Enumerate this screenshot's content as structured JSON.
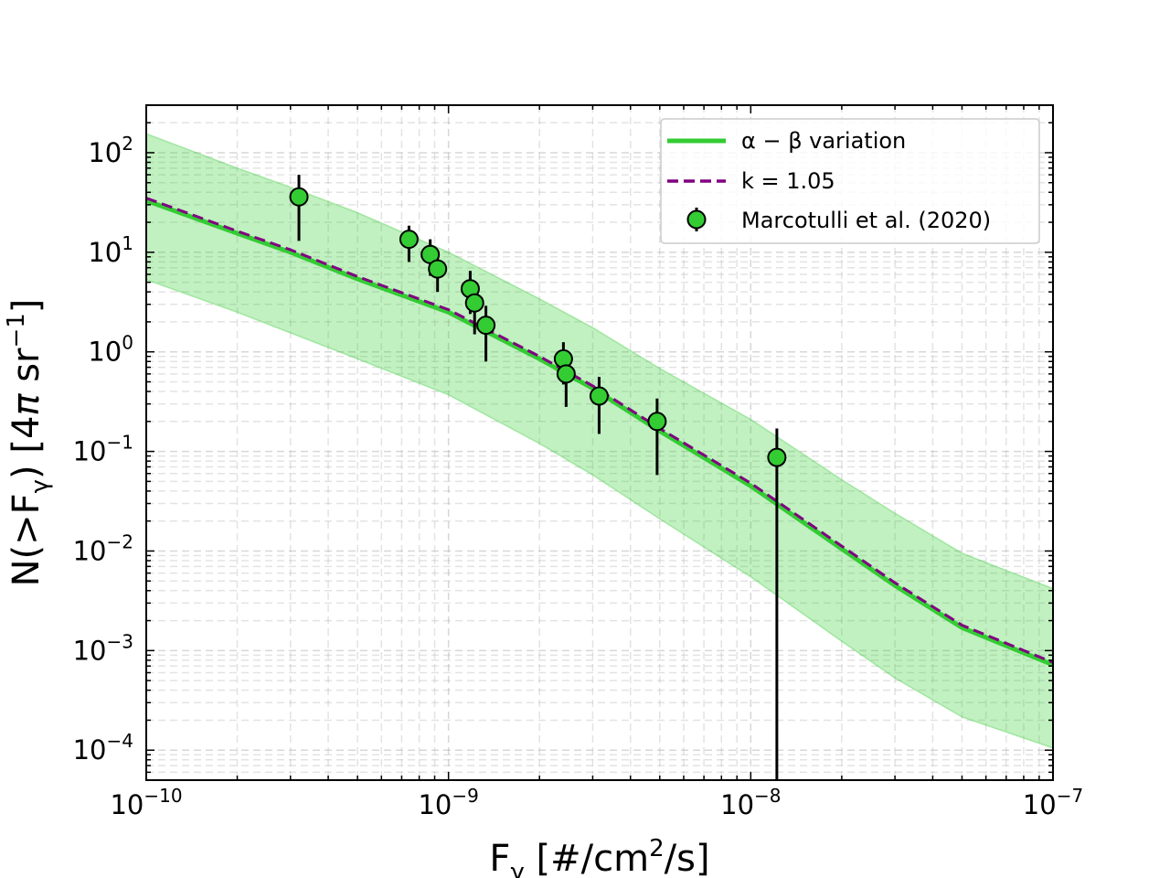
{
  "chart_data": {
    "type": "line",
    "title": "",
    "xlabel": {
      "base": "F",
      "sub": "γ",
      "units_pre": " [#/cm",
      "units_sup": "2",
      "units_post": "/s]"
    },
    "ylabel": {
      "pre": "N(>F",
      "sub": "γ",
      "mid": ") [4",
      "pi": "π",
      "sr": " sr",
      "sup": "−1",
      "post": "]"
    },
    "x_scale": "log",
    "y_scale": "log",
    "xlim": [
      1e-10,
      1e-07
    ],
    "ylim": [
      5e-05,
      300
    ],
    "x_ticks": [
      {
        "value": 1e-10,
        "base": "10",
        "exp": "−10"
      },
      {
        "value": 1e-09,
        "base": "10",
        "exp": "−9"
      },
      {
        "value": 1e-08,
        "base": "10",
        "exp": "−8"
      },
      {
        "value": 1e-07,
        "base": "10",
        "exp": "−7"
      }
    ],
    "y_ticks": [
      {
        "value": 100,
        "base": "10",
        "exp": "2"
      },
      {
        "value": 10,
        "base": "10",
        "exp": "1"
      },
      {
        "value": 1,
        "base": "10",
        "exp": "0"
      },
      {
        "value": 0.1,
        "base": "10",
        "exp": "−1"
      },
      {
        "value": 0.01,
        "base": "10",
        "exp": "−2"
      },
      {
        "value": 0.001,
        "base": "10",
        "exp": "−3"
      },
      {
        "value": 0.0001,
        "base": "10",
        "exp": "−4"
      }
    ],
    "grid": true,
    "legend_position": "top-right",
    "series": [
      {
        "name": "α − β variation",
        "kind": "line",
        "color": "#33cc33",
        "x": [
          1e-10,
          2e-10,
          3e-10,
          5e-10,
          1e-09,
          2e-09,
          3e-09,
          5e-09,
          1e-08,
          2e-08,
          3e-08,
          5e-08,
          1e-07
        ],
        "y": [
          33,
          15.5,
          10,
          5.4,
          2.5,
          0.85,
          0.43,
          0.16,
          0.045,
          0.0105,
          0.0045,
          0.0017,
          0.00072
        ]
      },
      {
        "name": "k = 1.05",
        "kind": "dashed-line",
        "color": "#800080",
        "x": [
          1e-10,
          2e-10,
          3e-10,
          5e-10,
          1e-09,
          2e-09,
          3e-09,
          5e-09,
          1e-08,
          2e-08,
          3e-08,
          5e-08,
          1e-07
        ],
        "y": [
          35,
          16.3,
          10.6,
          5.7,
          2.65,
          0.9,
          0.455,
          0.17,
          0.048,
          0.0112,
          0.0048,
          0.0018,
          0.00076
        ]
      },
      {
        "name": "Marcotulli et al. (2020)",
        "kind": "errorbar-scatter",
        "color": "#33cc33",
        "x": [
          3.2e-10,
          7.4e-10,
          8.7e-10,
          9.2e-10,
          1.18e-09,
          1.22e-09,
          1.33e-09,
          2.4e-09,
          2.45e-09,
          3.15e-09,
          4.9e-09,
          1.22e-08
        ],
        "y": [
          36,
          13.5,
          9.5,
          6.8,
          4.3,
          3.1,
          1.85,
          0.85,
          0.6,
          0.36,
          0.2,
          0.087
        ],
        "y_low": [
          13,
          8,
          5.8,
          4.0,
          2.4,
          1.5,
          0.8,
          0.47,
          0.28,
          0.15,
          0.058,
          5e-05
        ],
        "y_high": [
          60,
          18.5,
          13.5,
          9.5,
          6.5,
          4.8,
          2.9,
          1.25,
          0.95,
          0.56,
          0.34,
          0.17
        ]
      }
    ],
    "band": {
      "color": "#33cc33",
      "x": [
        1e-10,
        2e-10,
        3e-10,
        5e-10,
        1e-09,
        2e-09,
        3e-09,
        5e-09,
        1e-08,
        2e-08,
        3e-08,
        5e-08,
        1e-07
      ],
      "upper": [
        155,
        70,
        45,
        25,
        10,
        3.4,
        1.75,
        0.68,
        0.21,
        0.052,
        0.024,
        0.0095,
        0.0042
      ],
      "lower": [
        5.3,
        2.5,
        1.55,
        0.85,
        0.37,
        0.12,
        0.058,
        0.021,
        0.0055,
        0.00124,
        0.00053,
        0.000215,
        0.000105
      ]
    }
  }
}
